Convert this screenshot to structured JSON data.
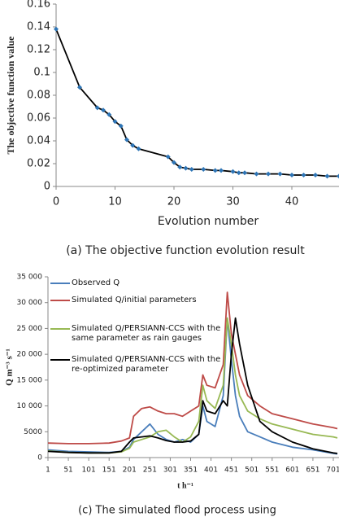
{
  "chart_data": [
    {
      "type": "line",
      "xlabel": "Evolution number",
      "ylabel": "The objective function value",
      "caption": "(a) The objective function evolution result",
      "x": [
        0,
        4,
        7,
        8,
        9,
        10,
        11,
        12,
        13,
        14,
        19,
        20,
        21,
        22,
        23,
        25,
        27,
        28,
        30,
        31,
        32,
        34,
        36,
        38,
        40,
        42,
        44,
        46,
        48
      ],
      "values": [
        0.138,
        0.087,
        0.069,
        0.067,
        0.063,
        0.057,
        0.053,
        0.041,
        0.036,
        0.033,
        0.026,
        0.021,
        0.017,
        0.016,
        0.015,
        0.015,
        0.014,
        0.014,
        0.013,
        0.012,
        0.012,
        0.011,
        0.011,
        0.011,
        0.01,
        0.01,
        0.01,
        0.009,
        0.009
      ],
      "color": "#000000",
      "marker_color": "#2e75b6",
      "xlim": [
        0,
        48
      ],
      "xticks": [
        0,
        10,
        20,
        30,
        40
      ],
      "ylim": [
        0,
        0.16
      ],
      "yticks": [
        0,
        0.02,
        0.04,
        0.06,
        0.08,
        0.1,
        0.12,
        0.14,
        0.16
      ]
    },
    {
      "type": "line",
      "xlabel": "t h⁻¹",
      "ylabel": "Q m⁻³ s⁻¹",
      "caption": "(c) The simulated flood process using",
      "x": [
        1,
        51,
        101,
        151,
        181,
        201,
        211,
        231,
        251,
        271,
        291,
        311,
        331,
        351,
        371,
        381,
        391,
        411,
        431,
        441,
        451,
        461,
        471,
        491,
        521,
        551,
        601,
        651,
        701,
        711
      ],
      "series": [
        {
          "name": "Observed Q",
          "color": "#4a7ebb",
          "values": [
            1500,
            1200,
            1100,
            1000,
            1200,
            2000,
            3500,
            5000,
            6500,
            4500,
            3500,
            3000,
            3500,
            3000,
            4500,
            10000,
            7000,
            6000,
            12000,
            27000,
            19000,
            12000,
            8000,
            5000,
            4000,
            3000,
            2000,
            1500,
            800,
            700
          ]
        },
        {
          "name": "Simulated Q/initial parameters",
          "color": "#be4b48",
          "values": [
            2800,
            2700,
            2700,
            2800,
            3200,
            3800,
            8000,
            9500,
            9800,
            9000,
            8500,
            8500,
            8000,
            9000,
            10000,
            16000,
            14000,
            13500,
            18000,
            32000,
            24000,
            20000,
            16000,
            12000,
            10000,
            8500,
            7500,
            6500,
            5800,
            5600
          ]
        },
        {
          "name": "Simulated Q/PERSIANN-CCS with the same parameter as rain gauges",
          "color": "#98b954",
          "values": [
            1300,
            1000,
            900,
            900,
            1100,
            1800,
            3000,
            3500,
            4000,
            5000,
            5300,
            4000,
            3000,
            4000,
            7000,
            14000,
            11000,
            9500,
            14000,
            27000,
            22000,
            16000,
            12000,
            9000,
            7500,
            6500,
            5500,
            4500,
            4000,
            3800
          ]
        },
        {
          "name": "Simulated Q/PERSIANN-CCS with the re-optimized parameter",
          "color": "#000000",
          "values": [
            1200,
            1000,
            900,
            900,
            1200,
            3000,
            3800,
            4000,
            4200,
            3800,
            3300,
            3000,
            3000,
            3200,
            4500,
            11000,
            9000,
            8500,
            11000,
            10000,
            20000,
            27000,
            22000,
            14000,
            7000,
            5000,
            3000,
            1700,
            900,
            800
          ]
        }
      ],
      "xlim": [
        1,
        715
      ],
      "xticks": [
        1,
        51,
        101,
        151,
        201,
        251,
        301,
        351,
        401,
        451,
        501,
        551,
        601,
        651,
        701
      ],
      "ylim": [
        0,
        35000
      ],
      "yticks": [
        0,
        {
          "value": 5000,
          "label": "5000"
        },
        {
          "value": 10000,
          "label": "10 000"
        },
        {
          "value": 15000,
          "label": "15 000"
        },
        {
          "value": 20000,
          "label": "20 000"
        },
        {
          "value": 25000,
          "label": "25 000"
        },
        {
          "value": 30000,
          "label": "30 000"
        },
        {
          "value": 35000,
          "label": "35 000"
        }
      ]
    }
  ]
}
